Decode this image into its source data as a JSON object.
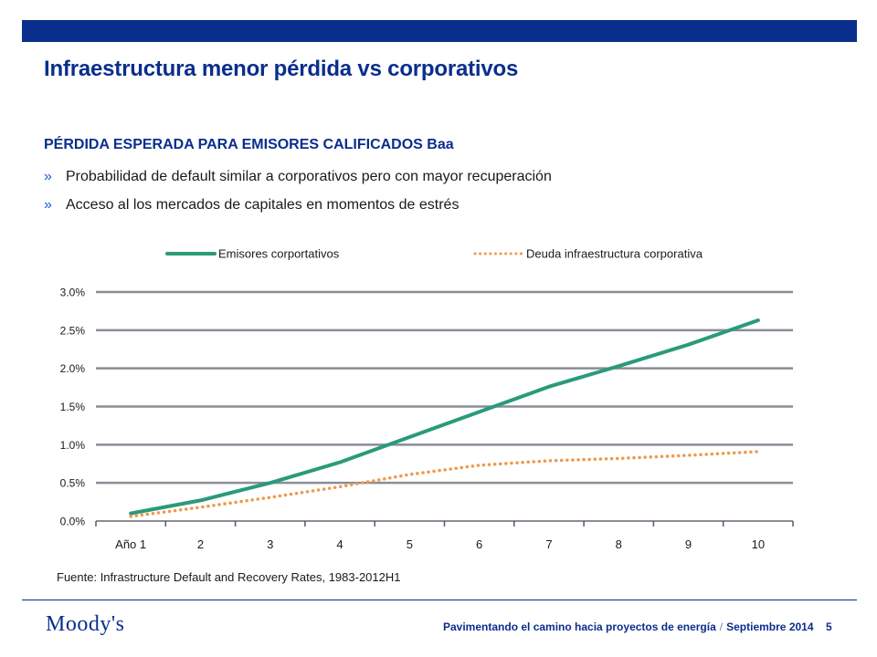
{
  "slide": {
    "title": "Infraestructura menor pérdida vs corporativos",
    "subtitle": "PÉRDIDA ESPERADA PARA EMISORES CALIFICADOS Baa",
    "bullet_marker": "»",
    "bullets": [
      "Probabilidad de default similar a corporativos pero con mayor recuperación",
      "Acceso al los mercados de capitales en momentos de estrés"
    ],
    "source": "Fuente: Infrastructure Default and Recovery Rates, 1983-2012H1"
  },
  "footer": {
    "logo": "Moody's",
    "text": "Pavimentando el camino hacia proyectos de energía",
    "separator": "/",
    "date": "Septiembre 2014",
    "page": "5"
  },
  "colors": {
    "brand_blue": "#0a2e8c",
    "series_corporate": "#2a9a7a",
    "series_infra": "#ee9a4d",
    "gridline": "#8a8d96"
  },
  "chart_data": {
    "type": "line",
    "categories": [
      "Año 1",
      "2",
      "3",
      "4",
      "5",
      "6",
      "7",
      "8",
      "9",
      "10"
    ],
    "series": [
      {
        "name": "Emisores corportativos",
        "style": "solid",
        "color": "#2a9a7a",
        "values": [
          0.1,
          0.27,
          0.5,
          0.77,
          1.1,
          1.43,
          1.76,
          2.03,
          2.31,
          2.63
        ]
      },
      {
        "name": "Deuda infraestructura corporativa",
        "style": "dotted",
        "color": "#ee9a4d",
        "values": [
          0.06,
          0.18,
          0.31,
          0.45,
          0.61,
          0.73,
          0.79,
          0.82,
          0.86,
          0.91
        ]
      }
    ],
    "ylim": [
      0,
      3.0
    ],
    "yticks": [
      0.0,
      0.5,
      1.0,
      1.5,
      2.0,
      2.5,
      3.0
    ],
    "ytick_labels": [
      "0.0%",
      "0.5%",
      "1.0%",
      "1.5%",
      "2.0%",
      "2.5%",
      "3.0%"
    ],
    "xlabel": "",
    "ylabel": "",
    "grid": true,
    "legend_position": "top"
  }
}
